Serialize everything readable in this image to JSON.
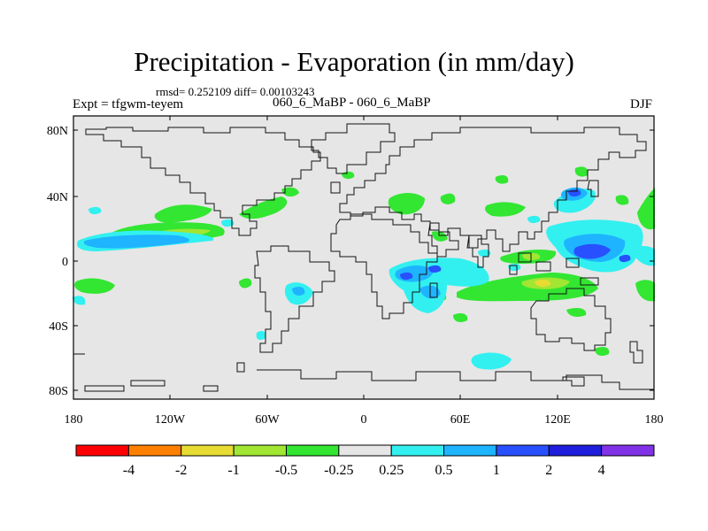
{
  "figure": {
    "title": "Precipitation - Evaporation (in mm/day)",
    "stats_line": "rmsd= 0.252109 diff= 0.00103243",
    "left_subtitle": "Expt = tfgwm-teyem",
    "center_subtitle": "060_6_MaBP - 060_6_MaBP",
    "right_subtitle": "DJF"
  },
  "map": {
    "latitude_labels": [
      "80N",
      "40N",
      "0",
      "40S",
      "80S"
    ],
    "longitude_labels": [
      "180",
      "120W",
      "60W",
      "0",
      "60E",
      "120E",
      "180"
    ],
    "ocean_color": "#e6e6e6"
  },
  "legend": {
    "colors": [
      "#ff0000",
      "#ff8000",
      "#e6dc32",
      "#a0e632",
      "#32e632",
      "#e6e6e6",
      "#32f0f0",
      "#1eb4ff",
      "#2850ff",
      "#1e1edc",
      "#8232e6"
    ],
    "labels": [
      "-4",
      "-2",
      "-1",
      "-0.5",
      "-0.25",
      "0.25",
      "0.5",
      "1",
      "2",
      "4"
    ]
  }
}
